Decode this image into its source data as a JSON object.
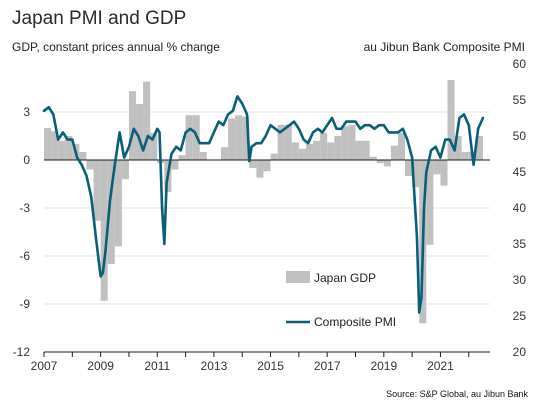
{
  "chart_data": {
    "type": "bar+line",
    "title": "Japan PMI and GDP",
    "left_axis_label": "GDP, constant prices annual % change",
    "right_axis_label": "au Jibun Bank Composite PMI",
    "source": "Source: S&P Global, au Jibun Bank",
    "left_ylim": [
      -12,
      6
    ],
    "left_ticks": [
      3,
      0,
      -3,
      -6,
      -9,
      -12
    ],
    "right_ylim": [
      20,
      60
    ],
    "right_ticks": [
      60,
      55,
      50,
      45,
      40,
      35,
      30,
      25,
      20
    ],
    "x_ticks": [
      "2007",
      "2009",
      "2011",
      "2013",
      "2015",
      "2017",
      "2019",
      "2021"
    ],
    "xlim": [
      2007.0,
      2022.75
    ],
    "legend": [
      "Japan GDP",
      "Composite PMI"
    ],
    "gdp_series": {
      "name": "Japan GDP",
      "color": "#c0c0c0",
      "x": [
        2007.0,
        2007.25,
        2007.5,
        2007.75,
        2008.0,
        2008.25,
        2008.5,
        2008.75,
        2009.0,
        2009.25,
        2009.5,
        2009.75,
        2010.0,
        2010.25,
        2010.5,
        2010.75,
        2011.0,
        2011.25,
        2011.5,
        2011.75,
        2012.0,
        2012.25,
        2012.5,
        2012.75,
        2013.0,
        2013.25,
        2013.5,
        2013.75,
        2014.0,
        2014.25,
        2014.5,
        2014.75,
        2015.0,
        2015.25,
        2015.5,
        2015.75,
        2016.0,
        2016.25,
        2016.5,
        2016.75,
        2017.0,
        2017.25,
        2017.5,
        2017.75,
        2018.0,
        2018.25,
        2018.5,
        2018.75,
        2019.0,
        2019.25,
        2019.5,
        2019.75,
        2020.0,
        2020.25,
        2020.5,
        2020.75,
        2021.0,
        2021.25,
        2021.5,
        2021.75,
        2022.0,
        2022.25
      ],
      "values": [
        2.0,
        1.8,
        1.2,
        1.5,
        1.0,
        0.5,
        -0.6,
        -3.8,
        -8.8,
        -6.5,
        -5.4,
        -1.2,
        4.3,
        3.5,
        4.9,
        1.7,
        -0.2,
        -2.0,
        -0.6,
        0.3,
        2.8,
        2.8,
        0.5,
        0.0,
        0.0,
        0.8,
        2.6,
        2.8,
        2.7,
        -0.5,
        -1.1,
        -0.7,
        0.4,
        2.2,
        2.2,
        1.1,
        0.7,
        1.0,
        1.2,
        1.7,
        1.1,
        1.5,
        2.1,
        2.2,
        1.2,
        1.2,
        0.2,
        -0.2,
        -0.4,
        0.9,
        1.7,
        -1.0,
        -1.7,
        -10.2,
        -5.3,
        -0.9,
        -1.6,
        5.0,
        1.5,
        0.5,
        0.5,
        1.5
      ]
    },
    "pmi_series": {
      "name": "Composite PMI",
      "color": "#0b5e78",
      "x": [
        2007.0,
        2007.17,
        2007.33,
        2007.5,
        2007.67,
        2007.83,
        2008.0,
        2008.17,
        2008.33,
        2008.5,
        2008.67,
        2008.83,
        2009.0,
        2009.08,
        2009.17,
        2009.33,
        2009.5,
        2009.67,
        2009.83,
        2010.0,
        2010.17,
        2010.33,
        2010.5,
        2010.67,
        2010.83,
        2011.0,
        2011.08,
        2011.17,
        2011.25,
        2011.33,
        2011.5,
        2011.67,
        2011.83,
        2012.0,
        2012.17,
        2012.33,
        2012.5,
        2012.67,
        2012.83,
        2013.0,
        2013.17,
        2013.33,
        2013.5,
        2013.67,
        2013.83,
        2014.0,
        2014.17,
        2014.25,
        2014.33,
        2014.5,
        2014.67,
        2014.83,
        2015.0,
        2015.17,
        2015.33,
        2015.5,
        2015.67,
        2015.83,
        2016.0,
        2016.17,
        2016.33,
        2016.5,
        2016.67,
        2016.83,
        2017.0,
        2017.17,
        2017.33,
        2017.5,
        2017.67,
        2017.83,
        2018.0,
        2018.17,
        2018.33,
        2018.5,
        2018.67,
        2018.83,
        2019.0,
        2019.17,
        2019.33,
        2019.5,
        2019.67,
        2019.83,
        2020.0,
        2020.17,
        2020.25,
        2020.33,
        2020.42,
        2020.5,
        2020.67,
        2020.83,
        2021.0,
        2021.17,
        2021.33,
        2021.5,
        2021.67,
        2021.83,
        2022.0,
        2022.17,
        2022.33,
        2022.5
      ],
      "values": [
        53.5,
        54.0,
        53.0,
        49.5,
        50.5,
        49.5,
        49.5,
        47.0,
        46.0,
        44.5,
        41.5,
        36.0,
        30.5,
        31.0,
        34.0,
        41.0,
        46.0,
        50.5,
        47.0,
        48.5,
        51.0,
        50.0,
        48.0,
        50.0,
        49.5,
        51.0,
        50.5,
        40.0,
        35.0,
        43.5,
        47.5,
        48.5,
        48.0,
        50.5,
        51.0,
        50.5,
        49.0,
        49.0,
        49.0,
        50.5,
        52.0,
        51.5,
        53.0,
        53.5,
        55.5,
        54.5,
        53.0,
        46.5,
        48.5,
        49.0,
        49.0,
        50.0,
        51.5,
        51.0,
        50.5,
        51.0,
        51.5,
        52.0,
        51.0,
        49.5,
        49.0,
        50.5,
        51.0,
        50.5,
        51.5,
        52.5,
        51.0,
        51.0,
        52.0,
        52.0,
        52.0,
        51.0,
        51.5,
        51.5,
        51.0,
        51.5,
        51.5,
        50.5,
        50.5,
        50.5,
        51.0,
        49.5,
        47.0,
        36.0,
        25.5,
        27.5,
        40.0,
        45.0,
        48.0,
        48.5,
        47.0,
        49.5,
        49.5,
        48.0,
        52.5,
        53.0,
        51.5,
        46.0,
        51.0,
        52.5
      ]
    }
  }
}
